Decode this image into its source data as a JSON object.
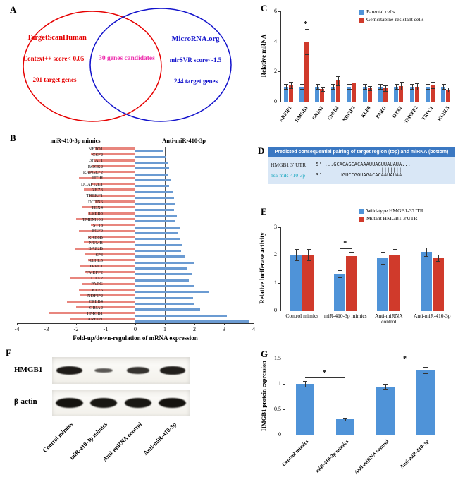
{
  "panel_a": {
    "label": "A",
    "venn": {
      "left": {
        "title": "TargetScanHuman",
        "criterion": "Context++ score<-0.05",
        "count": "201 target genes",
        "color": "#e60000"
      },
      "right": {
        "title": "MicroRNA.org",
        "criterion": "mirSVR score<-1.5",
        "count": "244 target genes",
        "color": "#1212cc"
      },
      "overlap": {
        "text": "30 genes candidates",
        "color": "#ee2fae"
      }
    }
  },
  "panel_b": {
    "label": "B"
  },
  "panel_c": {
    "label": "C"
  },
  "panel_d": {
    "label": "D",
    "header": "Predicted consequential pairing of target region (top) and miRNA (bottom)",
    "header_bg": "#3b78c2",
    "body_bg": "#d9e7f6",
    "mirna_color": "#1ba8c0",
    "rows": [
      {
        "label": "HMGB1 3' UTR",
        "seq": "5' ...GCACAGCACAAAUUAGUUAUAUA..."
      },
      {
        "label": "",
        "seq": "                      |||||||"
      },
      {
        "label": "hsa-miR-410-3p",
        "seq": "3'      UGUCCGGUAGACACAAUAUAA"
      }
    ]
  },
  "panel_e": {
    "label": "E"
  },
  "panel_f": {
    "label": "F",
    "row_labels": [
      "HMGB1",
      "β-actin"
    ],
    "lane_labels": [
      "Control mimics",
      "miR-410-3p mimics",
      "Anti-miRNA control",
      "Anti-miR-410-3p"
    ],
    "band_intensities": {
      "hmgb1": [
        0.95,
        0.35,
        0.7,
        0.9
      ],
      "beta_actin": [
        1,
        0.95,
        0.95,
        1
      ]
    }
  },
  "panel_g": {
    "label": "G"
  },
  "chart_data": [
    {
      "id": "panel_b",
      "type": "bar",
      "orientation": "horizontal",
      "series_titles": [
        "miR-410-3p mimics",
        "Anti-miR-410-3p"
      ],
      "xlabel": "Fold-up/down-regulation of mRNA expression",
      "xlim": [
        -4,
        4
      ],
      "xticks": [
        -4,
        -3,
        -2,
        -1,
        0,
        1,
        2,
        3,
        4
      ],
      "ref_lines": [
        -1,
        1
      ],
      "categories": [
        "NETO1",
        "CSF2",
        "3HAT1",
        "ROCK2",
        "RAPGEF2",
        "ITCH",
        "DCAF12L1",
        "ZEZ3",
        "TRERF1",
        "DCTN6",
        "TBX4",
        "CPEB3",
        "TMEM108",
        "ST18",
        "FGF9",
        "RAB8B",
        "NUMB",
        "BAZ2B",
        "SP3",
        "KLHL5",
        "TRPC1",
        "TMEFF2",
        "OTX2",
        "PARG",
        "KLF6",
        "NDFIP2",
        "CPEB4",
        "GRIA2",
        "HMGB1",
        "ARFIP1"
      ],
      "series": [
        {
          "name": "miR-410-3p mimics",
          "color": "#e8867e",
          "values": [
            -1.35,
            -1.5,
            -1.4,
            -1.45,
            -1.6,
            -1.9,
            -1.5,
            -1.75,
            -1.55,
            -1.35,
            -1.8,
            -1.6,
            -2.0,
            -1.5,
            -1.9,
            -1.6,
            -1.75,
            -2.05,
            -1.7,
            -1.6,
            -1.85,
            -1.7,
            -2.2,
            -1.8,
            -1.9,
            -1.85,
            -2.3,
            -2.0,
            -2.9,
            -2.2
          ]
        },
        {
          "name": "Anti-miR-410-3p",
          "color": "#6b9bd2",
          "values": [
            0.95,
            1.05,
            1.1,
            1.15,
            1.1,
            1.2,
            1.15,
            1.25,
            1.3,
            1.35,
            1.3,
            1.4,
            1.35,
            1.5,
            1.45,
            1.5,
            1.6,
            1.55,
            1.7,
            2.0,
            1.75,
            1.9,
            1.8,
            2.0,
            2.5,
            1.95,
            2.0,
            2.2,
            3.1,
            3.85
          ]
        }
      ]
    },
    {
      "id": "panel_c",
      "type": "bar",
      "ylabel": "Relative mRNA",
      "ylim": [
        0,
        6
      ],
      "yticks": [
        0,
        2,
        4,
        6
      ],
      "legend_position": "top-right",
      "categories": [
        "ARFIP1",
        "HMGB1",
        "GRIA2",
        "CPEB4",
        "NDFIP2",
        "KLF6",
        "PARG",
        "OTX2",
        "TMEFF2",
        "TRPC1",
        "KLHL5"
      ],
      "series": [
        {
          "name": "Parental cells",
          "color": "#4f93d8",
          "values": [
            1,
            1,
            1,
            1,
            1,
            1,
            1,
            1,
            1,
            1,
            1
          ],
          "errors": [
            0.15,
            0.15,
            0.15,
            0.15,
            0.15,
            0.15,
            0.15,
            0.15,
            0.15,
            0.15,
            0.15
          ]
        },
        {
          "name": "Gemcitabine-resistant cells",
          "color": "#d03a2b",
          "values": [
            1.1,
            4.0,
            0.85,
            1.4,
            1.2,
            0.9,
            0.9,
            1.05,
            1.0,
            1.1,
            0.8
          ],
          "errors": [
            0.2,
            0.85,
            0.15,
            0.3,
            0.25,
            0.15,
            0.2,
            0.25,
            0.2,
            0.2,
            0.15
          ]
        }
      ],
      "annotations": [
        {
          "text": "*",
          "category": "HMGB1",
          "series": "Gemcitabine-resistant cells"
        }
      ]
    },
    {
      "id": "panel_e",
      "type": "bar",
      "ylabel": "Relative luciferase activity",
      "ylim": [
        0,
        3
      ],
      "yticks": [
        0,
        1,
        2,
        3
      ],
      "legend_position": "top-right",
      "categories": [
        "Control mimics",
        "miR-410-3p mimics",
        "Anti-miRNA control",
        "Anti-miR-410-3p"
      ],
      "series": [
        {
          "name": "Wild-type HMGB1-3'UTR",
          "color": "#4f93d8",
          "values": [
            2.0,
            1.32,
            1.9,
            2.12
          ],
          "errors": [
            0.2,
            0.12,
            0.22,
            0.15
          ]
        },
        {
          "name": "Mutant HMGB1-3'UTR",
          "color": "#d03a2b",
          "values": [
            2.0,
            1.97,
            2.02,
            1.9
          ],
          "errors": [
            0.2,
            0.15,
            0.18,
            0.12
          ]
        }
      ],
      "annotations": [
        {
          "text": "*",
          "category": "miR-410-3p mimics",
          "bracket": true
        }
      ]
    },
    {
      "id": "panel_g",
      "type": "bar",
      "ylabel": "HMGB1 protein expression",
      "ylim": [
        0,
        1.5
      ],
      "yticks": [
        0,
        0.5,
        1,
        1.5
      ],
      "categories": [
        "Control mimics",
        "miR-410-3p mimics",
        "Anti-miRNA control",
        "Anti-miR-410-3p"
      ],
      "series": [
        {
          "name": "HMGB1 protein expression",
          "color": "#4f93d8",
          "values": [
            1.0,
            0.3,
            0.95,
            1.27
          ],
          "errors": [
            0.06,
            0.02,
            0.05,
            0.06
          ]
        }
      ],
      "annotations": [
        {
          "text": "*",
          "from": 0,
          "to": 1,
          "bracket": true
        },
        {
          "text": "*",
          "from": 2,
          "to": 3,
          "bracket": true
        }
      ]
    }
  ]
}
